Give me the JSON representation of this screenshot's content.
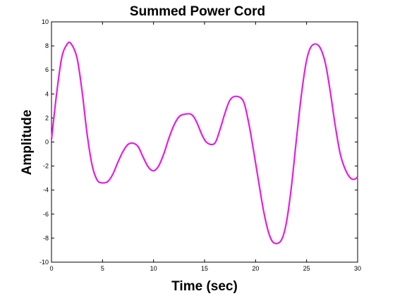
{
  "chart_data": {
    "type": "line",
    "title": "Summed Power Cord",
    "xlabel": "Time (sec)",
    "ylabel": "Amplitude",
    "xlim": [
      0,
      30
    ],
    "ylim": [
      -10,
      10
    ],
    "xticks": [
      0,
      5,
      10,
      15,
      20,
      25,
      30
    ],
    "yticks": [
      -10,
      -8,
      -6,
      -4,
      -2,
      0,
      2,
      4,
      6,
      8,
      10
    ],
    "grid": false,
    "line_color": "#e31ee3",
    "series": [
      {
        "x": [
          0,
          0.5,
          1,
          1.5,
          1.9,
          2.5,
          3,
          3.5,
          4,
          4.5,
          5,
          5.5,
          6,
          6.5,
          7,
          7.5,
          8,
          8.5,
          9,
          9.5,
          10,
          10.5,
          11,
          11.5,
          12,
          12.5,
          13,
          13.7,
          14.2,
          14.8,
          15.3,
          16,
          16.5,
          17,
          17.5,
          18.1,
          18.8,
          19.3,
          19.8,
          20.3,
          20.8,
          21.3,
          21.8,
          22.5,
          23,
          23.5,
          24,
          24.5,
          25,
          25.5,
          26.2,
          26.8,
          27.3,
          27.8,
          28.3,
          28.8,
          29.3,
          29.7,
          30
        ],
        "y": [
          0.2,
          4.0,
          7.0,
          8.1,
          8.2,
          7.0,
          4.2,
          0.6,
          -2.0,
          -3.2,
          -3.4,
          -3.3,
          -2.7,
          -1.7,
          -0.8,
          -0.2,
          -0.1,
          -0.4,
          -1.3,
          -2.1,
          -2.4,
          -2.0,
          -1.0,
          0.3,
          1.4,
          2.1,
          2.3,
          2.3,
          1.7,
          0.5,
          -0.1,
          -0.1,
          1.0,
          2.4,
          3.5,
          3.8,
          3.4,
          1.7,
          -0.7,
          -3.3,
          -5.8,
          -7.6,
          -8.4,
          -8.2,
          -6.8,
          -3.8,
          0.2,
          4.0,
          6.8,
          8.0,
          8.0,
          6.7,
          4.3,
          1.4,
          -1.0,
          -2.3,
          -3.0,
          -3.1,
          -2.9
        ]
      }
    ]
  }
}
